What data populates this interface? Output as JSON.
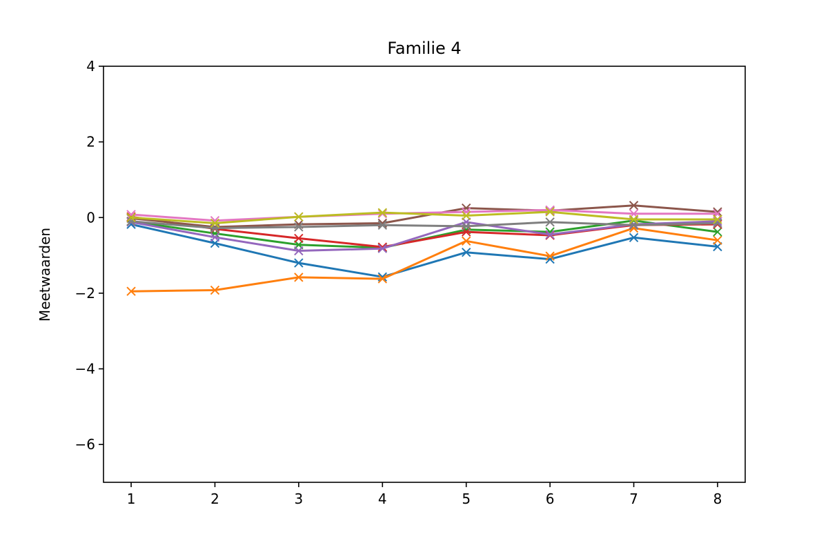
{
  "chart_data": {
    "type": "line",
    "title": "Familie 4",
    "xlabel": "",
    "ylabel": "Meetwaarden",
    "xlim": [
      0.67,
      8.33
    ],
    "ylim": [
      -7,
      4
    ],
    "x": [
      1,
      2,
      3,
      4,
      5,
      6,
      7,
      8
    ],
    "xticks": [
      1,
      2,
      3,
      4,
      5,
      6,
      7,
      8
    ],
    "yticks": [
      4,
      2,
      0,
      -2,
      -4,
      -6
    ],
    "ytick_labels": [
      "4",
      "2",
      "0",
      "−2",
      "−4",
      "−6"
    ],
    "grid": false,
    "marker": "x",
    "series": [
      {
        "color": "#1f77b4",
        "values": [
          -0.18,
          -0.68,
          -1.2,
          -1.57,
          -0.92,
          -1.1,
          -0.53,
          -0.77
        ]
      },
      {
        "color": "#ff7f0e",
        "values": [
          -1.95,
          -1.92,
          -1.58,
          -1.62,
          -0.62,
          -1.02,
          -0.28,
          -0.6
        ]
      },
      {
        "color": "#2ca02c",
        "values": [
          -0.1,
          -0.42,
          -0.72,
          -0.8,
          -0.32,
          -0.38,
          -0.08,
          -0.38
        ]
      },
      {
        "color": "#d62728",
        "values": [
          0.02,
          -0.3,
          -0.55,
          -0.78,
          -0.38,
          -0.47,
          -0.2,
          -0.18
        ]
      },
      {
        "color": "#9467bd",
        "values": [
          -0.12,
          -0.52,
          -0.88,
          -0.82,
          -0.12,
          -0.45,
          -0.18,
          -0.1
        ]
      },
      {
        "color": "#8c564b",
        "values": [
          -0.02,
          -0.25,
          -0.18,
          -0.15,
          0.25,
          0.18,
          0.32,
          0.15
        ]
      },
      {
        "color": "#e377c2",
        "values": [
          0.08,
          -0.08,
          0.02,
          0.1,
          0.15,
          0.2,
          0.1,
          0.1
        ]
      },
      {
        "color": "#7f7f7f",
        "values": [
          -0.1,
          -0.28,
          -0.25,
          -0.2,
          -0.23,
          -0.12,
          -0.2,
          -0.15
        ]
      },
      {
        "color": "#bcbd22",
        "values": [
          0.0,
          -0.15,
          0.02,
          0.13,
          0.05,
          0.15,
          -0.05,
          -0.05
        ]
      }
    ]
  }
}
